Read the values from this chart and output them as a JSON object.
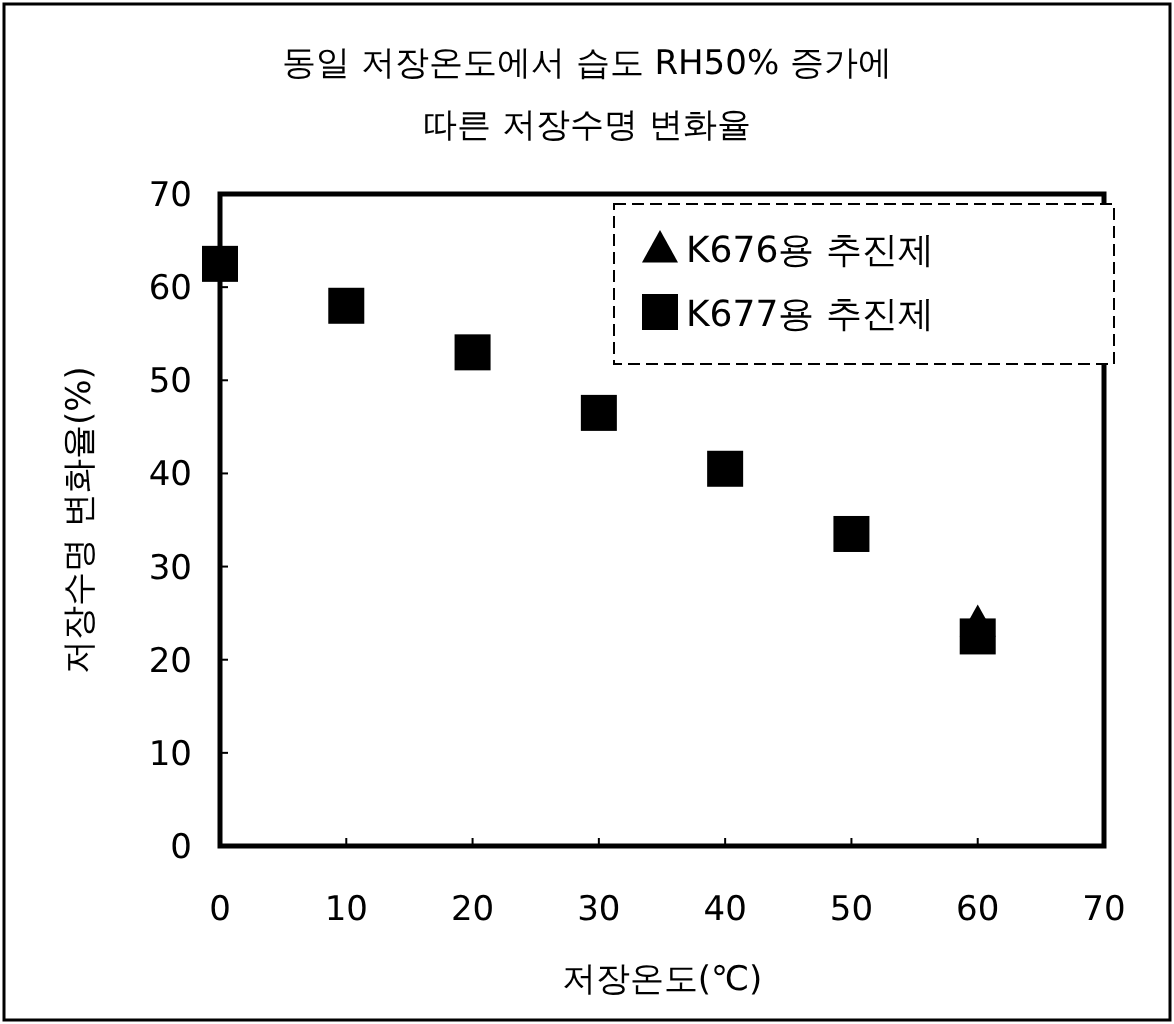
{
  "chart_data": {
    "type": "scatter",
    "title": "동일 저장온도에서 습도 RH50% 증가에 따른 저장수명 변화율",
    "xlabel": "저장온도(℃)",
    "ylabel": "저장수명 변화율(%)",
    "x": [
      0,
      10,
      20,
      30,
      40,
      50,
      60
    ],
    "series": [
      {
        "name": "K676용 추진제",
        "color": "#000000",
        "marker": "triangle",
        "values": [
          null,
          null,
          null,
          null,
          null,
          null,
          24
        ]
      },
      {
        "name": "K677용 추진제",
        "color": "#000000",
        "marker": "square",
        "values": [
          62.5,
          58,
          53,
          46.5,
          40.5,
          33.5,
          22.5
        ]
      }
    ],
    "xlim": [
      0,
      70
    ],
    "ylim": [
      0,
      70
    ],
    "xticks": [
      0,
      10,
      20,
      30,
      40,
      50,
      60,
      70
    ],
    "yticks": [
      0,
      10,
      20,
      30,
      40,
      50,
      60,
      70
    ],
    "grid": false,
    "legend": "top right"
  }
}
